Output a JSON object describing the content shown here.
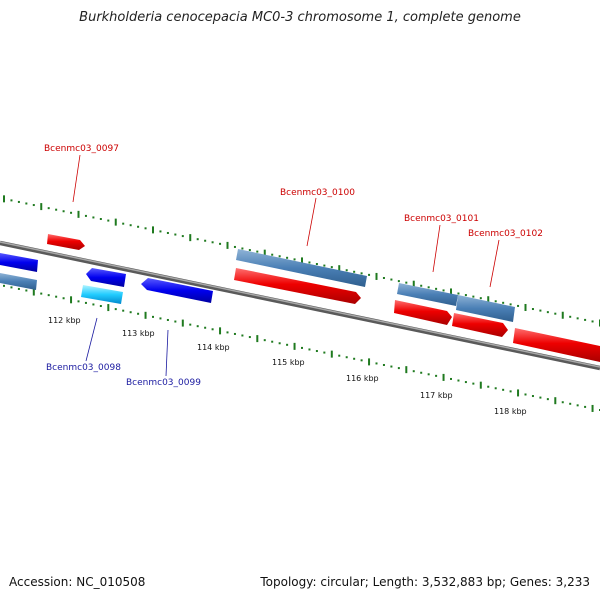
{
  "title": "Burkholderia cenocepacia MC0-3 chromosome 1, complete genome",
  "footer": {
    "accession": "Accession: NC_010508",
    "topology": "Topology: circular; Length: 3,532,883 bp; Genes: 3,233"
  },
  "map": {
    "colors": {
      "backbone": "#7a7a7a",
      "tick": "#1f7a1f",
      "label_red": "#cc0000",
      "label_blue": "#1a1aa0"
    },
    "ticks": [
      {
        "label": "112 kbp"
      },
      {
        "label": "113 kbp"
      },
      {
        "label": "114 kbp"
      },
      {
        "label": "115 kbp"
      },
      {
        "label": "116 kbp"
      },
      {
        "label": "117 kbp"
      },
      {
        "label": "118 kbp"
      }
    ],
    "gene_labels": [
      {
        "text": "Bcenmc03_0097",
        "color": "red"
      },
      {
        "text": "Bcenmc03_0098",
        "color": "blue"
      },
      {
        "text": "Bcenmc03_0099",
        "color": "blue"
      },
      {
        "text": "Bcenmc03_0100",
        "color": "red"
      },
      {
        "text": "Bcenmc03_0101",
        "color": "red"
      },
      {
        "text": "Bcenmc03_0102",
        "color": "red"
      }
    ]
  }
}
